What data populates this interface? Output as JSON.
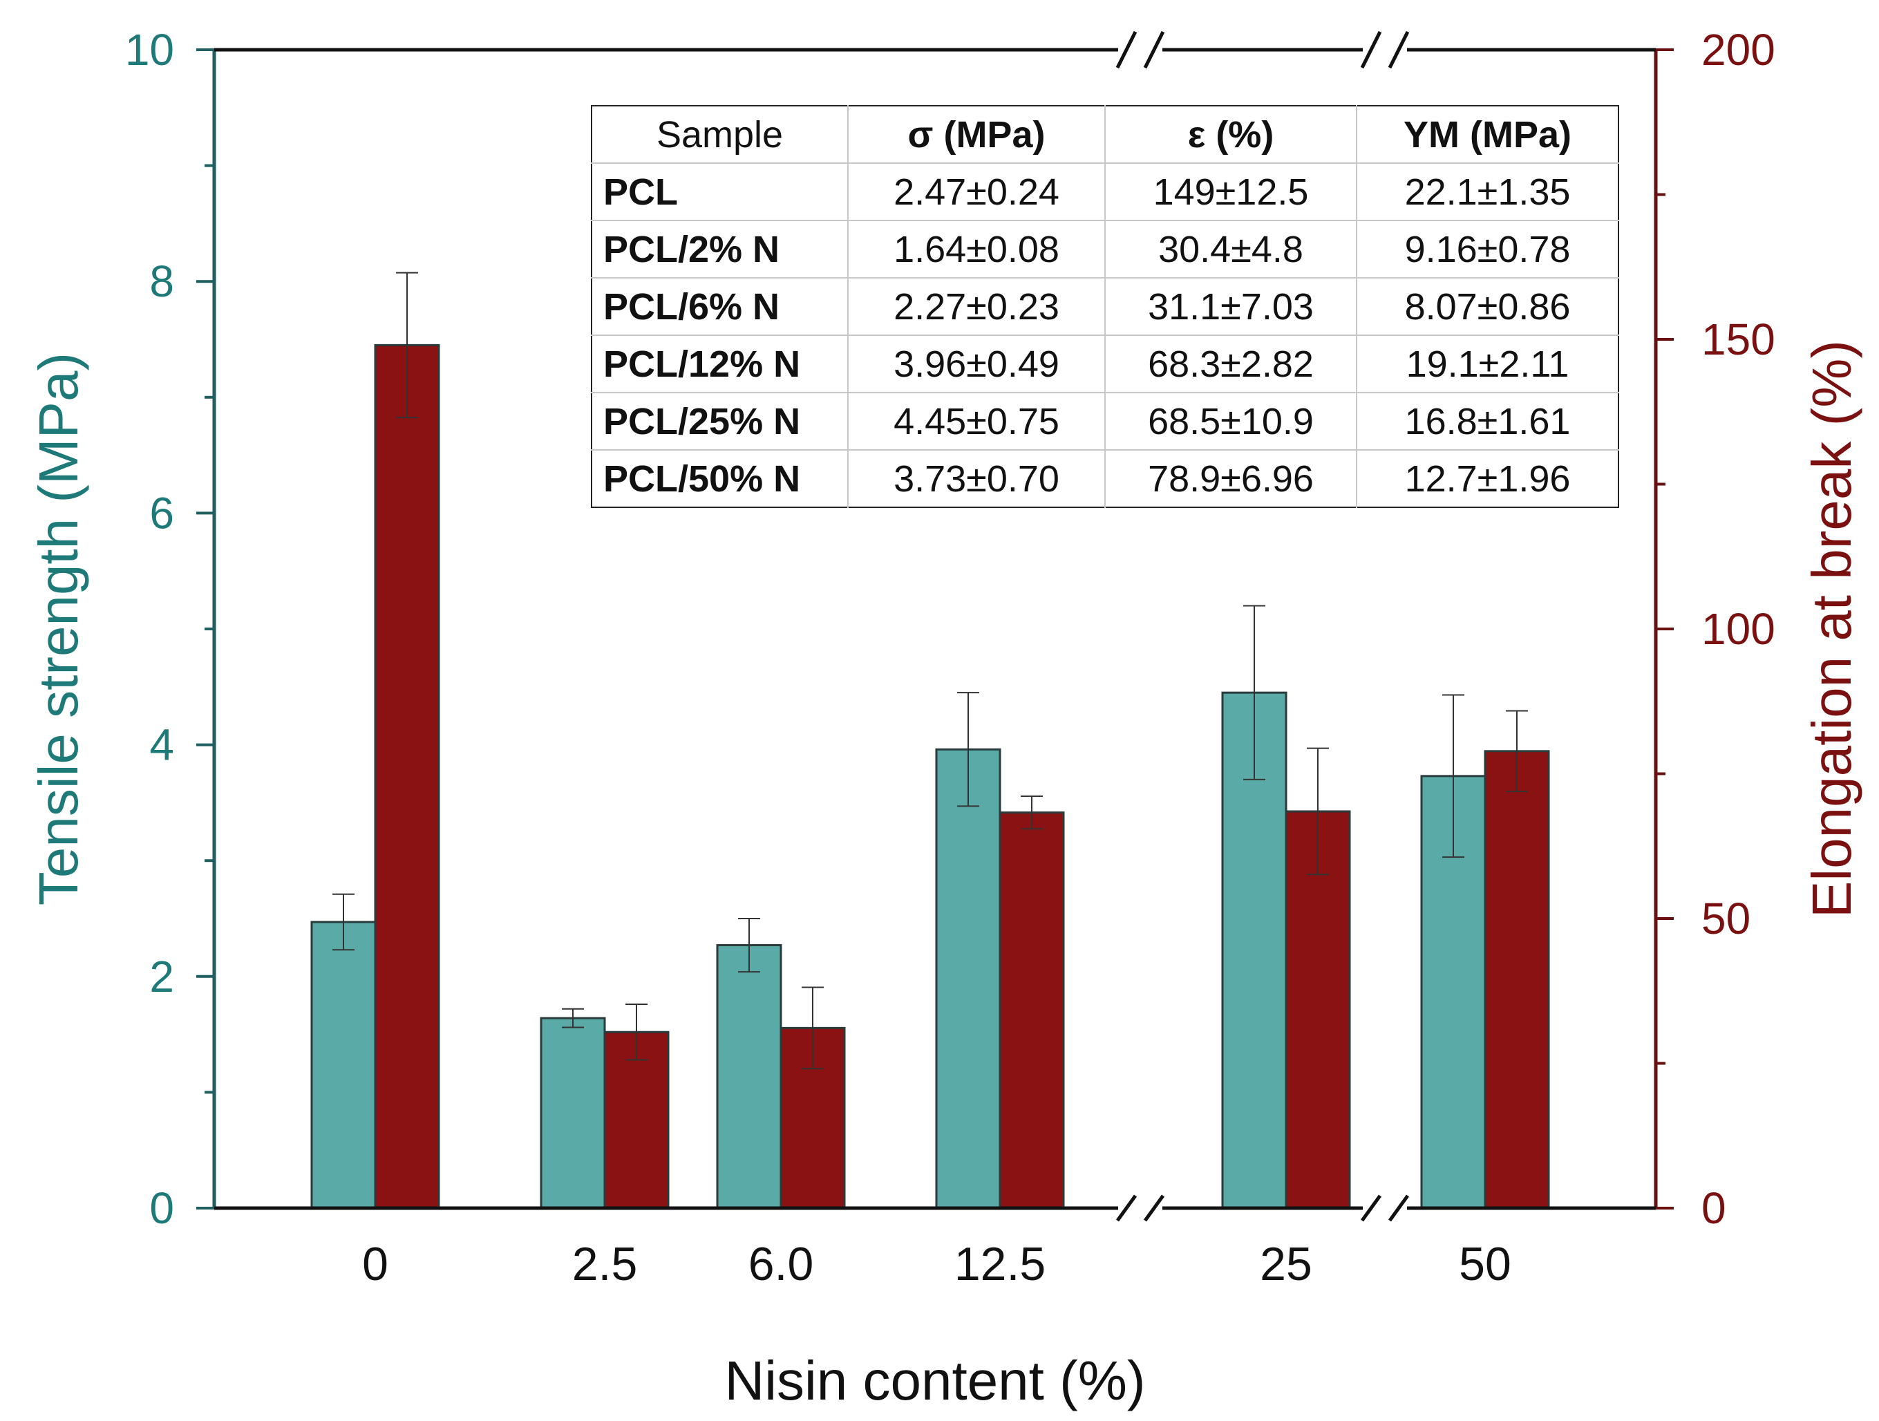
{
  "chart_data": {
    "type": "bar",
    "categories": [
      "0",
      "2.5",
      "6.0",
      "12.5",
      "25",
      "50"
    ],
    "series": [
      {
        "name": "Tensile strength (MPa)",
        "axis": "left",
        "color": "#5aaba8",
        "values": [
          2.47,
          1.64,
          2.27,
          3.96,
          4.45,
          3.73
        ],
        "errors": [
          0.24,
          0.08,
          0.23,
          0.49,
          0.75,
          0.7
        ]
      },
      {
        "name": "Elongation at break (%)",
        "axis": "right",
        "color": "#8b1212",
        "values": [
          149,
          30.4,
          31.1,
          68.3,
          68.5,
          78.9
        ],
        "errors": [
          12.5,
          4.8,
          7.03,
          2.82,
          10.9,
          6.96
        ]
      }
    ],
    "xlabel": "Nisin content (%)",
    "ylabel_left": "Tensile strength (MPa)",
    "ylabel_right": "Elongation at break (%)",
    "ylim_left": [
      0,
      10
    ],
    "ylim_right": [
      0,
      200
    ],
    "yticks_left": [
      "0",
      "2",
      "4",
      "6",
      "8",
      "10"
    ],
    "yticks_right": [
      "0",
      "50",
      "100",
      "150",
      "200"
    ],
    "left_axis_color": "#1f5f5f",
    "right_axis_color": "#6b1010",
    "axis_breaks": "between 12.5 and 25; between 25 and 50",
    "grid": false
  },
  "table": {
    "headers": [
      "Sample",
      "σ (MPa)",
      "ε (%)",
      "YM (MPa)"
    ],
    "rows": [
      {
        "sample": "PCL",
        "sigma": "2.47±0.24",
        "epsilon": "149±12.5",
        "ym": "22.1±1.35"
      },
      {
        "sample": "PCL/2% N",
        "sigma": "1.64±0.08",
        "epsilon": "30.4±4.8",
        "ym": "9.16±0.78"
      },
      {
        "sample": "PCL/6% N",
        "sigma": "2.27±0.23",
        "epsilon": "31.1±7.03",
        "ym": "8.07±0.86"
      },
      {
        "sample": "PCL/12% N",
        "sigma": "3.96±0.49",
        "epsilon": "68.3±2.82",
        "ym": "19.1±2.11"
      },
      {
        "sample": "PCL/25% N",
        "sigma": "4.45±0.75",
        "epsilon": "68.5±10.9",
        "ym": "16.8±1.61"
      },
      {
        "sample": "PCL/50% N",
        "sigma": "3.73±0.70",
        "epsilon": "78.9±6.96",
        "ym": "12.7±1.96"
      }
    ]
  }
}
